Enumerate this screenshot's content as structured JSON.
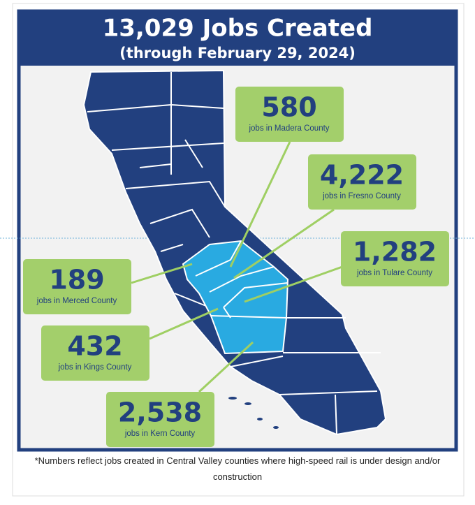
{
  "header": {
    "title": "13,029 Jobs Created",
    "subtitle": "(through February 29, 2024)"
  },
  "callouts": [
    {
      "number": "580",
      "label": "jobs in Madera County"
    },
    {
      "number": "4,222",
      "label": "jobs in Fresno County"
    },
    {
      "number": "1,282",
      "label": "jobs in Tulare County"
    },
    {
      "number": "189",
      "label": "jobs in Merced County"
    },
    {
      "number": "432",
      "label": "jobs in Kings County"
    },
    {
      "number": "2,538",
      "label": "jobs in Kern County"
    }
  ],
  "footnote": "*Numbers reflect jobs created in Central Valley counties where high-speed rail is under design and/or construction"
}
